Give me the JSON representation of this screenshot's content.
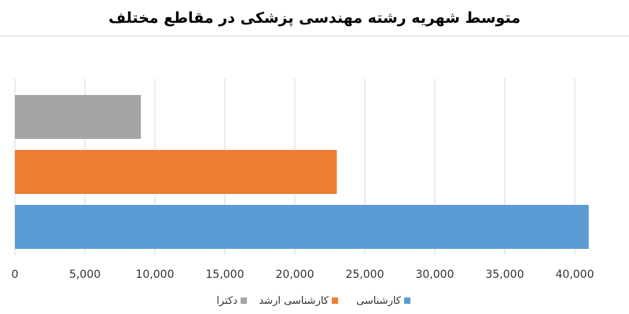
{
  "chart_data": {
    "type": "bar",
    "orientation": "horizontal",
    "title": "متوسط شهریه رشته مهندسی پزشکی در مقاطع مختلف",
    "xlim": [
      0,
      40000
    ],
    "x_ticks": [
      "0",
      "5,000",
      "10,000",
      "15,000",
      "20,000",
      "25,000",
      "30,000",
      "35,000",
      "40,000"
    ],
    "grid": true,
    "legend_position": "bottom",
    "series": [
      {
        "name": "دکترا",
        "value": 9000,
        "color": "#a5a5a5"
      },
      {
        "name": "کارشناسی ارشد",
        "value": 23000,
        "color": "#ed7d31"
      },
      {
        "name": "کارشناسی",
        "value": 41000,
        "color": "#5b9bd5"
      }
    ]
  }
}
